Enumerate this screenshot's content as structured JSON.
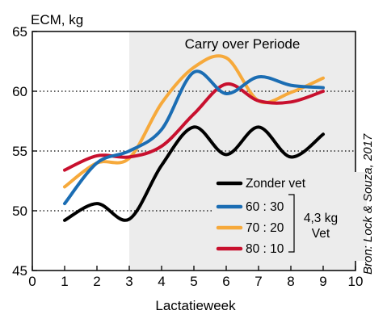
{
  "chart_data": {
    "type": "line",
    "ylabel": "ECM, kg",
    "xlabel": "Lactatieweek",
    "xlim": [
      0,
      10
    ],
    "ylim": [
      45,
      65
    ],
    "x_ticks": [
      0,
      1,
      2,
      3,
      4,
      5,
      6,
      7,
      8,
      9,
      10
    ],
    "y_ticks": [
      45,
      50,
      55,
      60,
      65
    ],
    "dotted_gridlines_y": [
      50,
      55,
      60
    ],
    "shaded_region": {
      "x_from": 3,
      "x_to": 10,
      "label": "Carry over Periode",
      "color": "#ececec"
    },
    "x": [
      1,
      2,
      3,
      4,
      5,
      6,
      7,
      8,
      9
    ],
    "series": [
      {
        "name": "Zonder vet",
        "color": "#000000",
        "values": [
          49.2,
          50.6,
          49.3,
          53.8,
          57.0,
          54.7,
          57.0,
          54.5,
          56.4
        ]
      },
      {
        "name": "60 : 30",
        "color": "#1b6db3",
        "values": [
          50.6,
          54.0,
          55.0,
          56.8,
          61.6,
          59.8,
          61.2,
          60.5,
          60.3
        ]
      },
      {
        "name": "70 : 20",
        "color": "#f6a93b",
        "values": [
          52.0,
          54.0,
          54.4,
          59.0,
          62.0,
          62.8,
          59.2,
          59.9,
          61.1
        ]
      },
      {
        "name": "80 : 10",
        "color": "#c8102e",
        "values": [
          53.4,
          54.6,
          54.5,
          55.4,
          58.1,
          60.6,
          59.2,
          59.1,
          60.0
        ]
      }
    ],
    "legend": {
      "placement": "bottom-right",
      "group_label_line1": "4,3 kg",
      "group_label_line2": "Vet"
    },
    "source_note": "Bron: Lock & Souza, 2017"
  }
}
